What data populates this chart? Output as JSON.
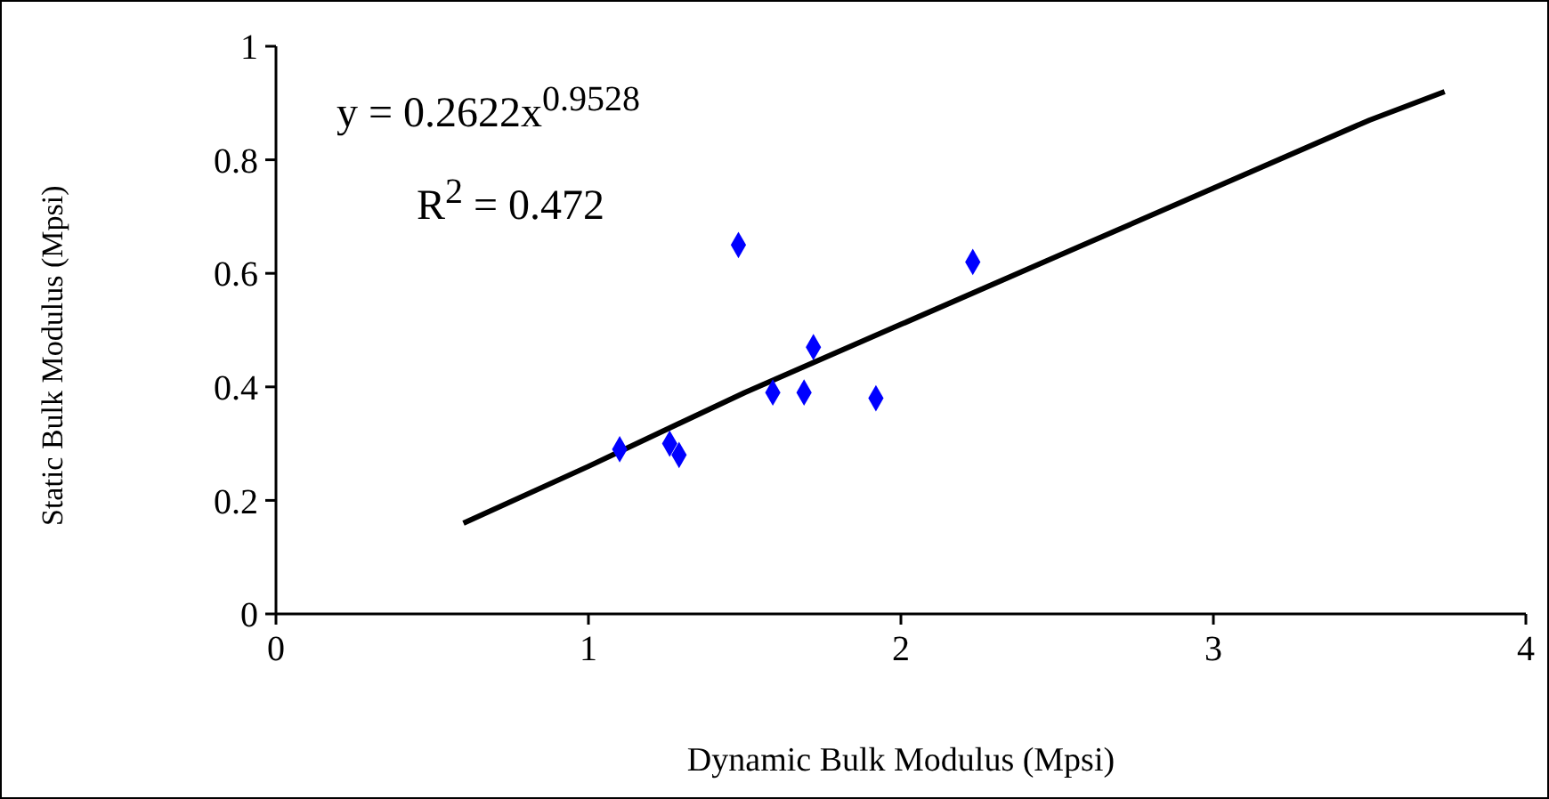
{
  "chart_data": {
    "type": "scatter",
    "xlabel": "Dynamic Bulk Modulus (Mpsi)",
    "ylabel": "Static Bulk Modulus (Mpsi)",
    "xlim": [
      0,
      4
    ],
    "xticks": [
      0,
      1,
      2,
      3,
      4
    ],
    "ylim": [
      0,
      1
    ],
    "yticks": [
      0,
      0.2,
      0.4,
      0.6,
      0.8,
      1
    ],
    "annotations": [
      "y = 0.2622x$^{0.9528}$",
      "R$^{2}$ = 0.472"
    ],
    "series": [
      {
        "color": "#0000ff",
        "marker": "diamond",
        "x": [
          1.1,
          1.26,
          1.29,
          1.48,
          1.59,
          1.69,
          1.72,
          1.92,
          2.23
        ],
        "values": [
          0.29,
          0.3,
          0.28,
          0.65,
          0.39,
          0.39,
          0.47,
          0.38,
          0.62
        ]
      },
      {
        "type": "line",
        "color": "#000000",
        "marker": "none",
        "x": [
          0.6,
          1,
          1.5,
          2,
          2.5,
          3,
          3.5,
          3.74
        ],
        "values": [
          0.16,
          0.26,
          0.39,
          0.51,
          0.63,
          0.75,
          0.87,
          0.92
        ]
      }
    ]
  }
}
